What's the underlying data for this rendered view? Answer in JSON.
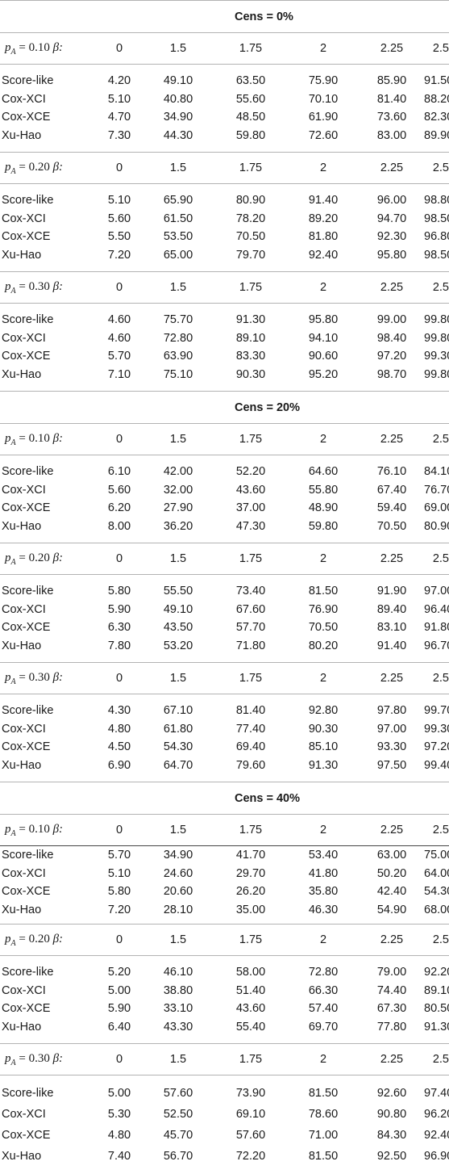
{
  "columns": [
    "0",
    "1.5",
    "1.75",
    "2",
    "2.25",
    "2.5"
  ],
  "beta_label": "β:",
  "cens_blocks": [
    {
      "label": "Cens = 0%",
      "groups": [
        {
          "pA": "0.10",
          "rows": [
            {
              "method": "Score-like",
              "values": [
                "4.20",
                "49.10",
                "63.50",
                "75.90",
                "85.90",
                "91.50"
              ]
            },
            {
              "method": "Cox-XCI",
              "values": [
                "5.10",
                "40.80",
                "55.60",
                "70.10",
                "81.40",
                "88.20"
              ]
            },
            {
              "method": "Cox-XCE",
              "values": [
                "4.70",
                "34.90",
                "48.50",
                "61.90",
                "73.60",
                "82.30"
              ]
            },
            {
              "method": "Xu-Hao",
              "values": [
                "7.30",
                "44.30",
                "59.80",
                "72.60",
                "83.00",
                "89.90"
              ]
            }
          ]
        },
        {
          "pA": "0.20",
          "rows": [
            {
              "method": "Score-like",
              "values": [
                "5.10",
                "65.90",
                "80.90",
                "91.40",
                "96.00",
                "98.80"
              ]
            },
            {
              "method": "Cox-XCI",
              "values": [
                "5.60",
                "61.50",
                "78.20",
                "89.20",
                "94.70",
                "98.50"
              ]
            },
            {
              "method": "Cox-XCE",
              "values": [
                "5.50",
                "53.50",
                "70.50",
                "81.80",
                "92.30",
                "96.80"
              ]
            },
            {
              "method": "Xu-Hao",
              "values": [
                "7.20",
                "65.00",
                "79.70",
                "92.40",
                "95.80",
                "98.50"
              ]
            }
          ]
        },
        {
          "pA": "0.30",
          "rows": [
            {
              "method": "Score-like",
              "values": [
                "4.60",
                "75.70",
                "91.30",
                "95.80",
                "99.00",
                "99.80"
              ]
            },
            {
              "method": "Cox-XCI",
              "values": [
                "4.60",
                "72.80",
                "89.10",
                "94.10",
                "98.40",
                "99.80"
              ]
            },
            {
              "method": "Cox-XCE",
              "values": [
                "5.70",
                "63.90",
                "83.30",
                "90.60",
                "97.20",
                "99.30"
              ]
            },
            {
              "method": "Xu-Hao",
              "values": [
                "7.10",
                "75.10",
                "90.30",
                "95.20",
                "98.70",
                "99.80"
              ]
            }
          ]
        }
      ]
    },
    {
      "label": "Cens = 20%",
      "groups": [
        {
          "pA": "0.10",
          "rows": [
            {
              "method": "Score-like",
              "values": [
                "6.10",
                "42.00",
                "52.20",
                "64.60",
                "76.10",
                "84.10"
              ]
            },
            {
              "method": "Cox-XCI",
              "values": [
                "5.60",
                "32.00",
                "43.60",
                "55.80",
                "67.40",
                "76.70"
              ]
            },
            {
              "method": "Cox-XCE",
              "values": [
                "6.20",
                "27.90",
                "37.00",
                "48.90",
                "59.40",
                "69.00"
              ]
            },
            {
              "method": "Xu-Hao",
              "values": [
                "8.00",
                "36.20",
                "47.30",
                "59.80",
                "70.50",
                "80.90"
              ]
            }
          ]
        },
        {
          "pA": "0.20",
          "rows": [
            {
              "method": "Score-like",
              "values": [
                "5.80",
                "55.50",
                "73.40",
                "81.50",
                "91.90",
                "97.00"
              ]
            },
            {
              "method": "Cox-XCI",
              "values": [
                "5.90",
                "49.10",
                "67.60",
                "76.90",
                "89.40",
                "96.40"
              ]
            },
            {
              "method": "Cox-XCE",
              "values": [
                "6.30",
                "43.50",
                "57.70",
                "70.50",
                "83.10",
                "91.80"
              ]
            },
            {
              "method": "Xu-Hao",
              "values": [
                "7.80",
                "53.20",
                "71.80",
                "80.20",
                "91.40",
                "96.70"
              ]
            }
          ]
        },
        {
          "pA": "0.30",
          "rows": [
            {
              "method": "Score-like",
              "values": [
                "4.30",
                "67.10",
                "81.40",
                "92.80",
                "97.80",
                "99.70"
              ]
            },
            {
              "method": "Cox-XCI",
              "values": [
                "4.80",
                "61.80",
                "77.40",
                "90.30",
                "97.00",
                "99.30"
              ]
            },
            {
              "method": "Cox-XCE",
              "values": [
                "4.50",
                "54.30",
                "69.40",
                "85.10",
                "93.30",
                "97.20"
              ]
            },
            {
              "method": "Xu-Hao",
              "values": [
                "6.90",
                "64.70",
                "79.60",
                "91.30",
                "97.50",
                "99.40"
              ]
            }
          ]
        }
      ]
    },
    {
      "label": "Cens = 40%",
      "groups": [
        {
          "pA": "0.10",
          "rows": [
            {
              "method": "Score-like",
              "values": [
                "5.70",
                "34.90",
                "41.70",
                "53.40",
                "63.00",
                "75.00"
              ]
            },
            {
              "method": "Cox-XCI",
              "values": [
                "5.10",
                "24.60",
                "29.70",
                "41.80",
                "50.20",
                "64.00"
              ]
            },
            {
              "method": "Cox-XCE",
              "values": [
                "5.80",
                "20.60",
                "26.20",
                "35.80",
                "42.40",
                "54.30"
              ]
            },
            {
              "method": "Xu-Hao",
              "values": [
                "7.20",
                "28.10",
                "35.00",
                "46.30",
                "54.90",
                "68.00"
              ]
            }
          ]
        },
        {
          "pA": "0.20",
          "rows": [
            {
              "method": "Score-like",
              "values": [
                "5.20",
                "46.10",
                "58.00",
                "72.80",
                "79.00",
                "92.20"
              ]
            },
            {
              "method": "Cox-XCI",
              "values": [
                "5.00",
                "38.80",
                "51.40",
                "66.30",
                "74.40",
                "89.10"
              ]
            },
            {
              "method": "Cox-XCE",
              "values": [
                "5.90",
                "33.10",
                "43.60",
                "57.40",
                "67.30",
                "80.50"
              ]
            },
            {
              "method": "Xu-Hao",
              "values": [
                "6.40",
                "43.30",
                "55.40",
                "69.70",
                "77.80",
                "91.30"
              ]
            }
          ]
        },
        {
          "pA": "0.30",
          "rows": [
            {
              "method": "Score-like",
              "values": [
                "5.00",
                "57.60",
                "73.90",
                "81.50",
                "92.60",
                "97.40"
              ]
            },
            {
              "method": "Cox-XCI",
              "values": [
                "5.30",
                "52.50",
                "69.10",
                "78.60",
                "90.80",
                "96.20"
              ]
            },
            {
              "method": "Cox-XCE",
              "values": [
                "4.80",
                "45.70",
                "57.60",
                "71.00",
                "84.30",
                "92.40"
              ]
            },
            {
              "method": "Xu-Hao",
              "values": [
                "7.40",
                "56.70",
                "72.20",
                "81.50",
                "92.50",
                "96.90"
              ]
            }
          ]
        }
      ]
    }
  ]
}
